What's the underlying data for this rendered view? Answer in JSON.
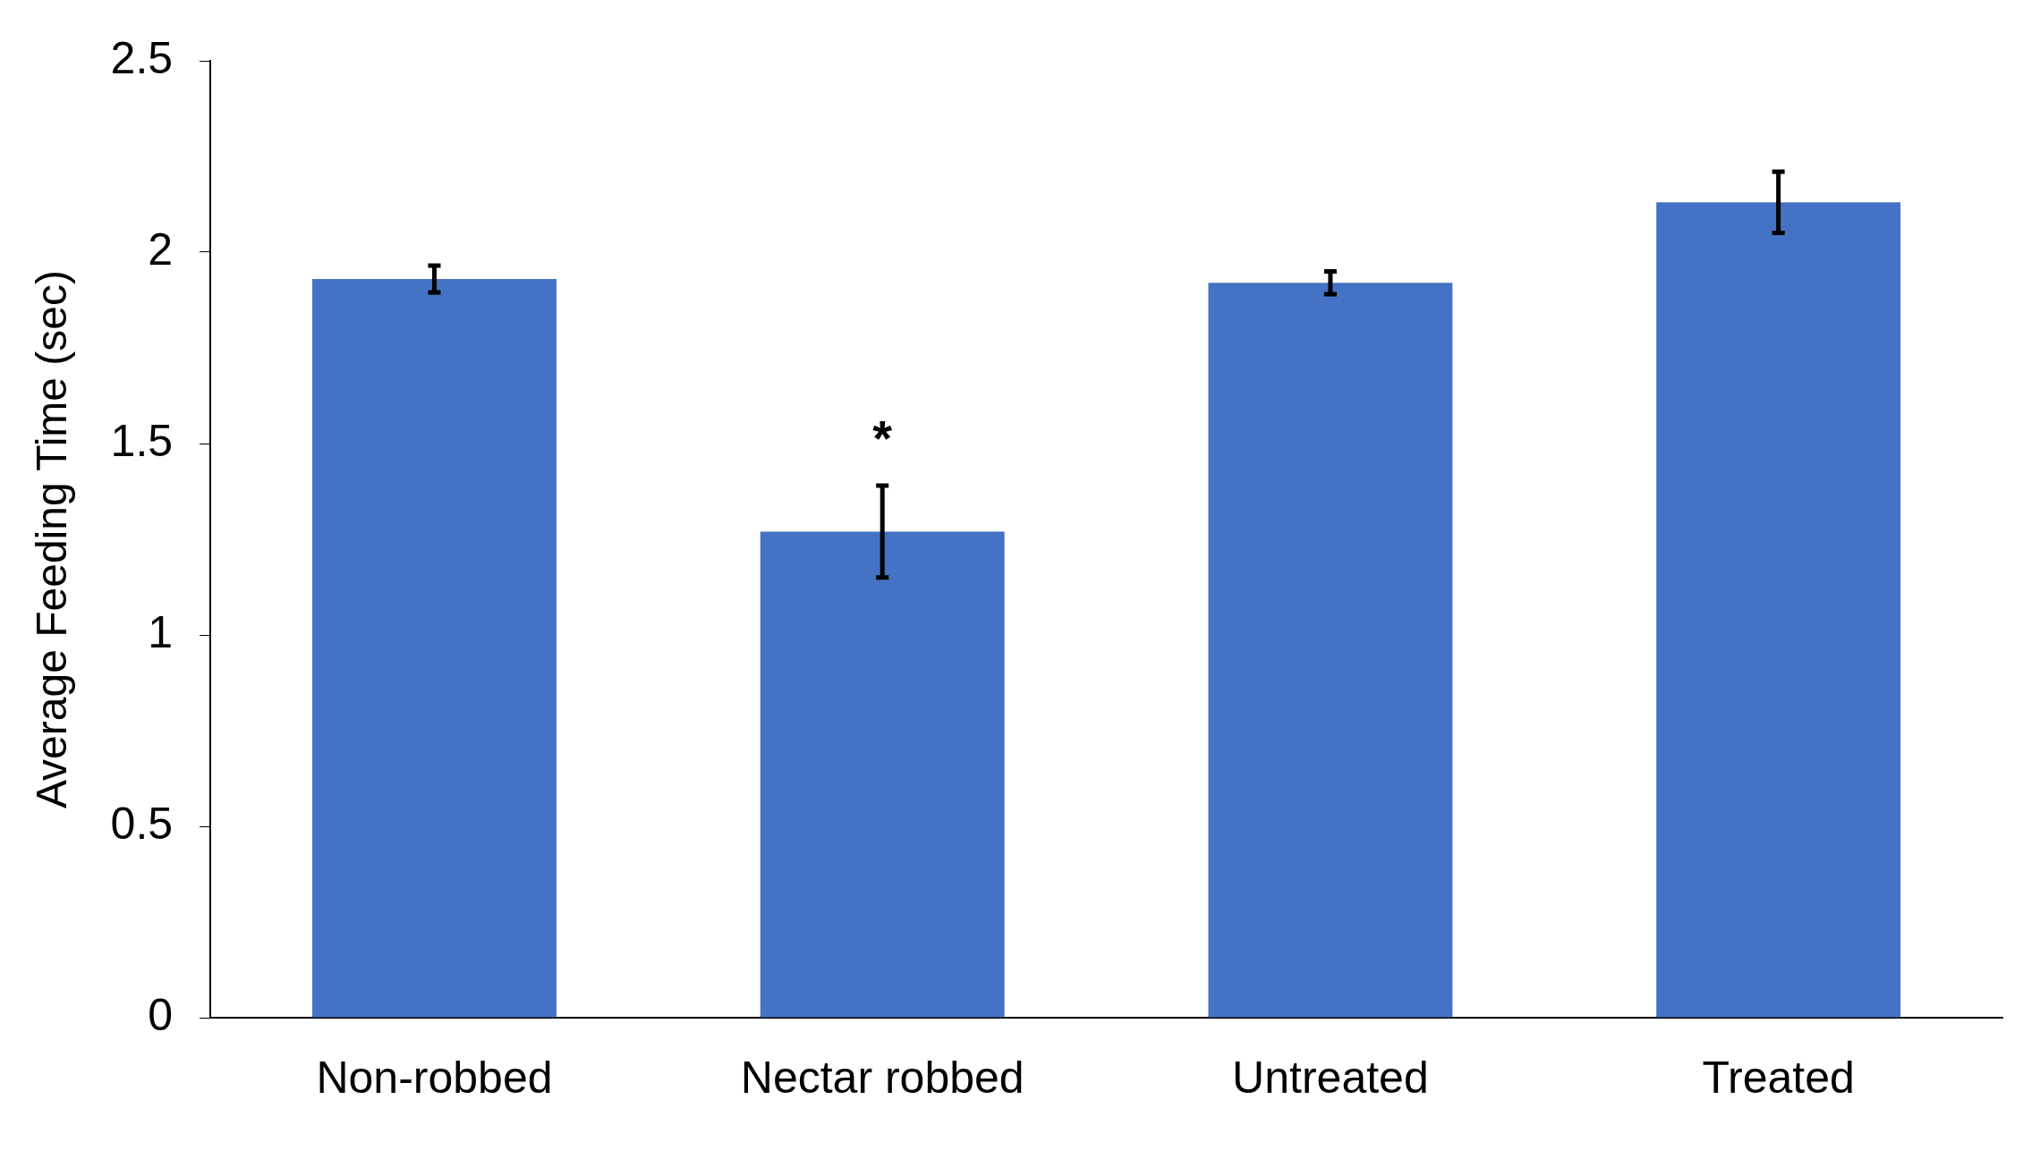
{
  "chart_data": {
    "type": "bar",
    "ylabel": "Average Feeding Time (sec)",
    "categories": [
      "Non-robbed",
      "Nectar robbed",
      "Untreated",
      "Treated"
    ],
    "values": [
      1.93,
      1.27,
      1.92,
      2.13
    ],
    "errors": [
      0.035,
      0.12,
      0.03,
      0.08
    ],
    "color": "#4472c4",
    "ylim": [
      0,
      2.5
    ],
    "yticks": [
      0,
      0.5,
      1,
      1.5,
      2,
      2.5
    ],
    "grid": false,
    "legend": false,
    "annotations": [
      "*"
    ]
  }
}
